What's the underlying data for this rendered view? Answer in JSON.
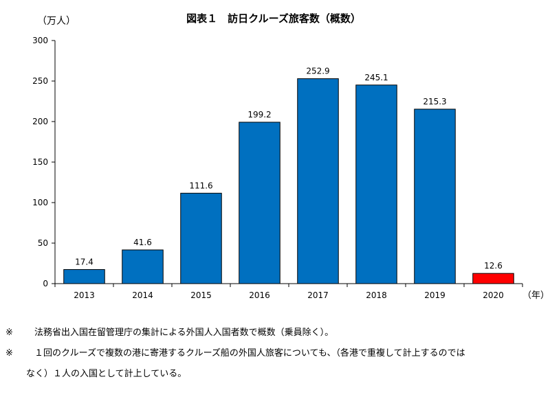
{
  "chart_data": {
    "type": "bar",
    "title": "図表１　訪日クルーズ旅客数（概数）",
    "ylabel": "（万人）",
    "xlabel": "（年）",
    "categories": [
      "2013",
      "2014",
      "2015",
      "2016",
      "2017",
      "2018",
      "2019",
      "2020"
    ],
    "values": [
      17.4,
      41.6,
      111.6,
      199.2,
      252.9,
      245.1,
      215.3,
      12.6
    ],
    "data_labels": [
      "17.4",
      "41.6",
      "111.6",
      "199.2",
      "252.9",
      "245.1",
      "215.3",
      "12.6"
    ],
    "ylim": [
      0,
      300
    ],
    "yticks": [
      0,
      50,
      100,
      150,
      200,
      250,
      300
    ],
    "bar_colors": [
      "#0070C0",
      "#0070C0",
      "#0070C0",
      "#0070C0",
      "#0070C0",
      "#0070C0",
      "#0070C0",
      "#FF0000"
    ],
    "grid": false,
    "legend": "none"
  },
  "notes": {
    "mark": "※",
    "note1": "法務省出入国在留管理庁の集計による外国人入国者数で概数（乗員除く）。",
    "note2_line1": "１回のクルーズで複数の港に寄港するクルーズ船の外国人旅客についても、（各港で重複して計上するのでは",
    "note2_line2": "なく）１人の入国として計上している。"
  }
}
